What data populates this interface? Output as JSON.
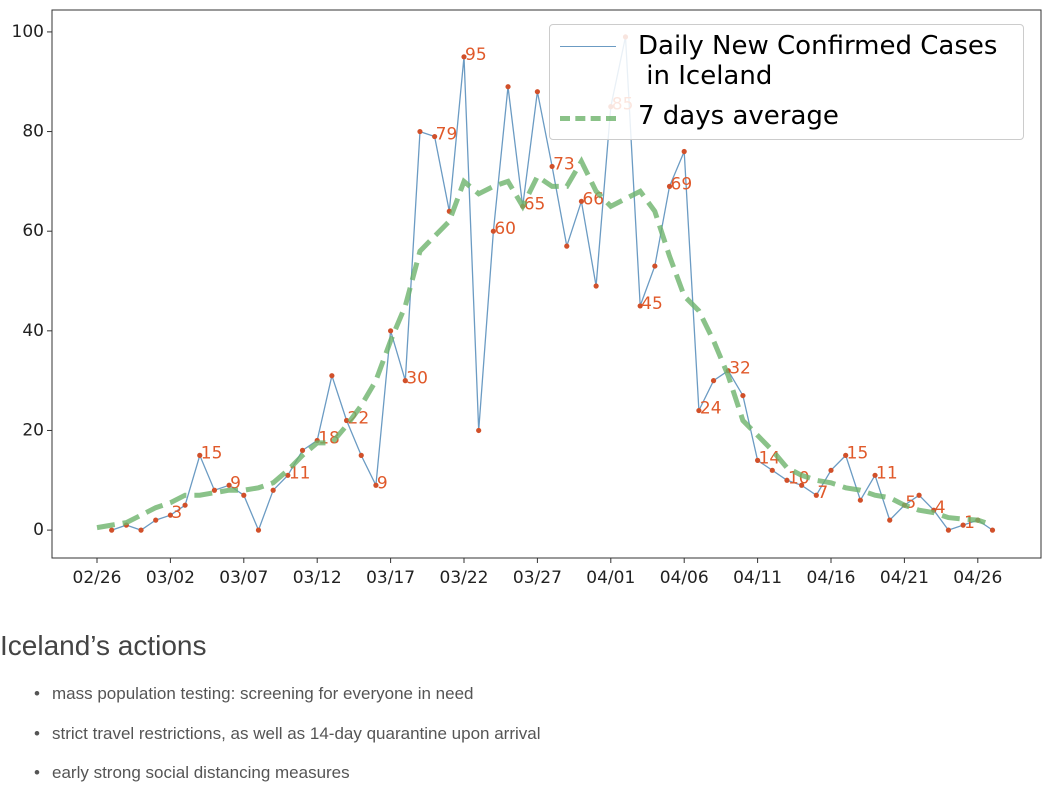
{
  "chart_data": {
    "type": "line",
    "categories": [
      "02/26",
      null,
      null,
      null,
      null,
      "03/02",
      null,
      null,
      null,
      null,
      "03/07",
      null,
      null,
      null,
      null,
      "03/12",
      null,
      null,
      null,
      null,
      "03/17",
      null,
      null,
      null,
      null,
      "03/22",
      null,
      null,
      null,
      null,
      "03/27",
      null,
      null,
      null,
      null,
      "04/01",
      null,
      null,
      null,
      null,
      "04/06",
      null,
      null,
      null,
      null,
      "04/11",
      null,
      null,
      null,
      null,
      "04/16",
      null,
      null,
      null,
      null,
      "04/21",
      null,
      null,
      null,
      null,
      "04/26",
      null
    ],
    "series": [
      {
        "name": "Daily New Confirmed Cases\n in Iceland",
        "color": "#6b9bc3",
        "marker_color": "#d1502a",
        "label_color": "#e0592a",
        "values": [
          null,
          0,
          1,
          0,
          2,
          3,
          5,
          15,
          8,
          9,
          7,
          0,
          8,
          11,
          16,
          18,
          31,
          22,
          15,
          9,
          40,
          30,
          80,
          79,
          64,
          95,
          20,
          60,
          89,
          65,
          88,
          73,
          57,
          66,
          49,
          85,
          99,
          45,
          53,
          69,
          76,
          24,
          30,
          32,
          27,
          14,
          12,
          10,
          9,
          7,
          12,
          15,
          6,
          11,
          2,
          5,
          7,
          4,
          0,
          1,
          2,
          0
        ]
      },
      {
        "name": "7 days average",
        "color": "#6db36b",
        "dashed": true,
        "values": [
          0.5,
          1,
          1.5,
          3,
          4.5,
          5.5,
          7,
          7,
          7.5,
          8,
          8,
          8.5,
          9.5,
          12,
          15,
          17.5,
          17.5,
          21,
          25,
          30,
          38,
          45,
          56,
          59,
          62,
          70,
          67.5,
          69,
          70,
          65,
          71,
          69,
          69,
          74,
          68,
          65,
          66.5,
          68,
          64,
          55,
          47,
          44,
          38,
          31,
          22,
          19,
          16,
          12.5,
          11,
          10,
          9.5,
          8.5,
          8,
          7,
          6.5,
          5,
          4,
          3.5,
          2.5,
          2.2,
          2,
          1
        ]
      }
    ],
    "ylim": [
      -5.6,
      104.4
    ],
    "yticks": [
      0,
      20,
      40,
      60,
      80,
      100
    ],
    "grid": false,
    "legend": "upper right"
  },
  "section": {
    "heading": "Iceland’s actions",
    "bullets": [
      "mass population testing: screening for everyone in need",
      "strict travel restrictions, as well as 14-day quarantine upon arrival",
      "early strong social distancing measures"
    ]
  }
}
